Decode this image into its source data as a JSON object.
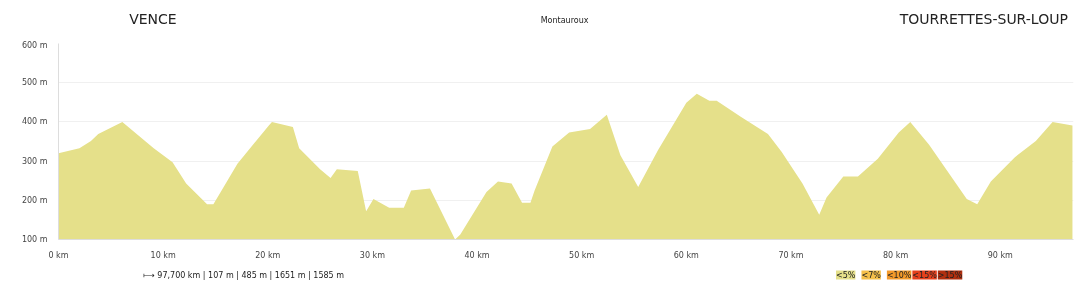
{
  "chart_data": {
    "type": "area",
    "color": "#e5e08a",
    "annotations": [
      "VENCE",
      "Montauroux",
      "TOURRETTES-SUR-LOUP",
      "⟼ 97,700 km | 107 m | 485 m | 1651 m | 1585 m",
      "<5%",
      "<7%",
      "<10%",
      "<15%",
      ">15%"
    ],
    "x": [
      0,
      2.0,
      3.1,
      3.8,
      6.1,
      9.1,
      10.9,
      12.2,
      14.2,
      14.8,
      15.5,
      17.1,
      20.1,
      20.4,
      22.4,
      23.0,
      25.0,
      26.0,
      26.6,
      28.6,
      29.4,
      30.1,
      31.6,
      33.0,
      33.7,
      35.5,
      37.9,
      38.4,
      40.9,
      42.0,
      43.3,
      44.3,
      45.1,
      45.5,
      47.2,
      48.8,
      50.8,
      52.4,
      53.7,
      55.4,
      57.3,
      60.0,
      61.0,
      62.2,
      62.9,
      65.2,
      67.8,
      69.1,
      71.1,
      72.7,
      73.4,
      75.0,
      76.4,
      78.3,
      80.3,
      81.4,
      83.2,
      86.8,
      87.8,
      89.1,
      91.4,
      93.4,
      95.0,
      96.9
    ],
    "values": [
      320,
      333,
      351,
      369,
      400,
      333,
      297,
      243,
      190,
      190,
      221,
      293,
      391,
      400,
      387,
      333,
      279,
      257,
      279,
      275,
      172,
      203,
      181,
      181,
      225,
      230,
      100,
      113,
      221,
      248,
      243,
      194,
      194,
      225,
      337,
      373,
      382,
      418,
      315,
      234,
      328,
      449,
      472,
      454,
      454,
      413,
      369,
      324,
      243,
      163,
      207,
      261,
      261,
      306,
      373,
      400,
      342,
      203,
      190,
      248,
      310,
      351,
      400,
      391
    ],
    "xlim": [
      0,
      97
    ],
    "ylim": [
      100,
      600
    ],
    "xticks": [
      {
        "value": 0,
        "label": "0 km"
      },
      {
        "value": 10,
        "label": "10 km"
      },
      {
        "value": 20,
        "label": "20 km"
      },
      {
        "value": 30,
        "label": "30 km"
      },
      {
        "value": 40,
        "label": "40 km"
      },
      {
        "value": 50,
        "label": "50 km"
      },
      {
        "value": 60,
        "label": "60 km"
      },
      {
        "value": 70,
        "label": "70 km"
      },
      {
        "value": 80,
        "label": "80 km"
      },
      {
        "value": 90,
        "label": "90 km"
      }
    ],
    "yticks": [
      {
        "value": 100,
        "label": "100 m"
      },
      {
        "value": 200,
        "label": "200 m"
      },
      {
        "value": 300,
        "label": "300 m"
      },
      {
        "value": 400,
        "label": "400 m"
      },
      {
        "value": 500,
        "label": "500 m"
      },
      {
        "value": 600,
        "label": "600 m"
      }
    ],
    "grid": "y"
  }
}
